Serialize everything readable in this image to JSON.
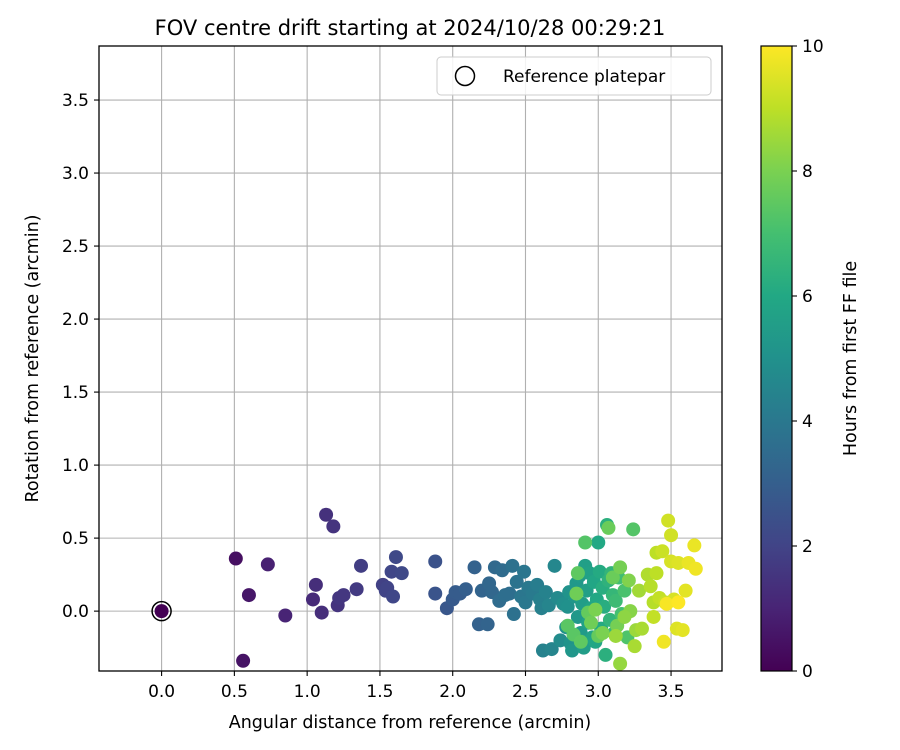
{
  "chart_data": {
    "type": "scatter",
    "title": "FOV centre drift starting at 2024/10/28 00:29:21",
    "xlabel": "Angular distance from reference (arcmin)",
    "ylabel": "Rotation from reference (arcmin)",
    "xlim": [
      -0.43,
      3.85
    ],
    "ylim": [
      -0.41,
      3.87
    ],
    "xticks": [
      0.0,
      0.5,
      1.0,
      1.5,
      2.0,
      2.5,
      3.0,
      3.5
    ],
    "xtick_labels": [
      "0.0",
      "0.5",
      "1.0",
      "1.5",
      "2.0",
      "2.5",
      "3.0",
      "3.5"
    ],
    "yticks": [
      0.0,
      0.5,
      1.0,
      1.5,
      2.0,
      2.5,
      3.0,
      3.5
    ],
    "ytick_labels": [
      "0.0",
      "0.5",
      "1.0",
      "1.5",
      "2.0",
      "2.5",
      "3.0",
      "3.5"
    ],
    "grid": true,
    "legend": {
      "position": "top-right",
      "label": "Reference platepar"
    },
    "reference_point": {
      "x": 0.0,
      "y": 0.0,
      "hours": 0.0
    },
    "colorbar": {
      "label": "Hours from first FF file",
      "colormap": "viridis",
      "min": 0,
      "max": 10,
      "ticks": [
        0,
        2,
        4,
        6,
        8,
        10
      ],
      "tick_labels": [
        "0",
        "2",
        "4",
        "6",
        "8",
        "10"
      ]
    },
    "points": [
      {
        "x": 0.0,
        "y": 0.0,
        "h": 0.0
      },
      {
        "x": 0.51,
        "y": 0.36,
        "h": 0.4
      },
      {
        "x": 0.56,
        "y": -0.34,
        "h": 0.5
      },
      {
        "x": 0.6,
        "y": 0.11,
        "h": 0.6
      },
      {
        "x": 0.73,
        "y": 0.32,
        "h": 0.9
      },
      {
        "x": 0.85,
        "y": -0.03,
        "h": 1.0
      },
      {
        "x": 1.04,
        "y": 0.08,
        "h": 1.2
      },
      {
        "x": 1.06,
        "y": 0.18,
        "h": 1.3
      },
      {
        "x": 1.1,
        "y": -0.01,
        "h": 1.3
      },
      {
        "x": 1.13,
        "y": 0.66,
        "h": 1.4
      },
      {
        "x": 1.18,
        "y": 0.58,
        "h": 1.5
      },
      {
        "x": 1.21,
        "y": 0.04,
        "h": 1.5
      },
      {
        "x": 1.22,
        "y": 0.09,
        "h": 1.6
      },
      {
        "x": 1.25,
        "y": 0.11,
        "h": 1.6
      },
      {
        "x": 1.34,
        "y": 0.15,
        "h": 1.7
      },
      {
        "x": 1.37,
        "y": 0.31,
        "h": 1.8
      },
      {
        "x": 1.52,
        "y": 0.18,
        "h": 1.9
      },
      {
        "x": 1.54,
        "y": 0.14,
        "h": 2.0
      },
      {
        "x": 1.55,
        "y": 0.16,
        "h": 2.0
      },
      {
        "x": 1.58,
        "y": 0.27,
        "h": 2.1
      },
      {
        "x": 1.59,
        "y": 0.1,
        "h": 2.1
      },
      {
        "x": 1.61,
        "y": 0.37,
        "h": 2.2
      },
      {
        "x": 1.65,
        "y": 0.26,
        "h": 2.2
      },
      {
        "x": 1.88,
        "y": 0.34,
        "h": 2.5
      },
      {
        "x": 1.88,
        "y": 0.12,
        "h": 2.6
      },
      {
        "x": 1.96,
        "y": 0.02,
        "h": 2.7
      },
      {
        "x": 2.0,
        "y": 0.08,
        "h": 2.8
      },
      {
        "x": 2.02,
        "y": 0.13,
        "h": 2.9
      },
      {
        "x": 2.05,
        "y": 0.12,
        "h": 2.9
      },
      {
        "x": 2.09,
        "y": 0.15,
        "h": 3.0
      },
      {
        "x": 2.15,
        "y": 0.3,
        "h": 3.1
      },
      {
        "x": 2.18,
        "y": -0.09,
        "h": 3.1
      },
      {
        "x": 2.2,
        "y": 0.14,
        "h": 3.2
      },
      {
        "x": 2.24,
        "y": -0.09,
        "h": 3.2
      },
      {
        "x": 2.25,
        "y": 0.19,
        "h": 3.3
      },
      {
        "x": 2.27,
        "y": 0.13,
        "h": 3.3
      },
      {
        "x": 2.29,
        "y": 0.3,
        "h": 3.4
      },
      {
        "x": 2.32,
        "y": 0.07,
        "h": 3.5
      },
      {
        "x": 2.34,
        "y": 0.28,
        "h": 3.5
      },
      {
        "x": 2.36,
        "y": 0.11,
        "h": 3.6
      },
      {
        "x": 2.39,
        "y": 0.12,
        "h": 3.6
      },
      {
        "x": 2.41,
        "y": 0.31,
        "h": 3.7
      },
      {
        "x": 2.42,
        "y": -0.02,
        "h": 3.7
      },
      {
        "x": 2.44,
        "y": 0.2,
        "h": 3.8
      },
      {
        "x": 2.47,
        "y": 0.1,
        "h": 3.9
      },
      {
        "x": 2.49,
        "y": 0.27,
        "h": 3.9
      },
      {
        "x": 2.5,
        "y": 0.06,
        "h": 4.0
      },
      {
        "x": 2.52,
        "y": 0.16,
        "h": 4.0
      },
      {
        "x": 2.55,
        "y": 0.12,
        "h": 4.1
      },
      {
        "x": 2.58,
        "y": 0.18,
        "h": 4.2
      },
      {
        "x": 2.6,
        "y": 0.08,
        "h": 4.3
      },
      {
        "x": 2.61,
        "y": 0.02,
        "h": 4.3
      },
      {
        "x": 2.62,
        "y": -0.27,
        "h": 4.4
      },
      {
        "x": 2.64,
        "y": 0.13,
        "h": 4.4
      },
      {
        "x": 2.66,
        "y": 0.04,
        "h": 4.5
      },
      {
        "x": 2.68,
        "y": -0.26,
        "h": 4.5
      },
      {
        "x": 2.7,
        "y": 0.31,
        "h": 4.6
      },
      {
        "x": 2.72,
        "y": 0.09,
        "h": 4.7
      },
      {
        "x": 2.74,
        "y": -0.2,
        "h": 4.8
      },
      {
        "x": 2.76,
        "y": 0.05,
        "h": 4.9
      },
      {
        "x": 2.78,
        "y": -0.11,
        "h": 5.0
      },
      {
        "x": 2.79,
        "y": 0.03,
        "h": 5.0
      },
      {
        "x": 2.8,
        "y": 0.13,
        "h": 5.1
      },
      {
        "x": 2.81,
        "y": -0.22,
        "h": 5.1
      },
      {
        "x": 2.82,
        "y": -0.27,
        "h": 5.2
      },
      {
        "x": 2.84,
        "y": 0.1,
        "h": 5.2
      },
      {
        "x": 2.85,
        "y": 0.19,
        "h": 5.3
      },
      {
        "x": 2.86,
        "y": -0.04,
        "h": 5.3
      },
      {
        "x": 2.87,
        "y": 0.24,
        "h": 5.4
      },
      {
        "x": 2.88,
        "y": -0.15,
        "h": 5.4
      },
      {
        "x": 2.89,
        "y": 0.05,
        "h": 5.5
      },
      {
        "x": 2.9,
        "y": -0.25,
        "h": 5.5
      },
      {
        "x": 2.91,
        "y": 0.31,
        "h": 5.6
      },
      {
        "x": 2.92,
        "y": 0.14,
        "h": 5.6
      },
      {
        "x": 2.93,
        "y": -0.08,
        "h": 5.7
      },
      {
        "x": 2.94,
        "y": 0.26,
        "h": 5.7
      },
      {
        "x": 2.95,
        "y": 0.02,
        "h": 5.8
      },
      {
        "x": 2.96,
        "y": -0.18,
        "h": 5.8
      },
      {
        "x": 2.97,
        "y": 0.2,
        "h": 5.9
      },
      {
        "x": 2.98,
        "y": -0.21,
        "h": 5.9
      },
      {
        "x": 2.99,
        "y": 0.08,
        "h": 6.0
      },
      {
        "x": 3.0,
        "y": 0.47,
        "h": 6.0
      },
      {
        "x": 3.01,
        "y": 0.27,
        "h": 6.1
      },
      {
        "x": 3.02,
        "y": -0.12,
        "h": 6.1
      },
      {
        "x": 3.03,
        "y": 0.16,
        "h": 6.2
      },
      {
        "x": 3.04,
        "y": 0.03,
        "h": 6.2
      },
      {
        "x": 3.05,
        "y": -0.3,
        "h": 6.3
      },
      {
        "x": 3.06,
        "y": 0.59,
        "h": 6.3
      },
      {
        "x": 3.07,
        "y": 0.21,
        "h": 6.4
      },
      {
        "x": 3.08,
        "y": -0.06,
        "h": 6.5
      },
      {
        "x": 3.09,
        "y": 0.26,
        "h": 6.5
      },
      {
        "x": 3.1,
        "y": 0.11,
        "h": 6.6
      },
      {
        "x": 3.11,
        "y": -0.15,
        "h": 6.7
      },
      {
        "x": 3.12,
        "y": 0.07,
        "h": 6.8
      },
      {
        "x": 3.14,
        "y": 0.23,
        "h": 6.9
      },
      {
        "x": 3.16,
        "y": -0.02,
        "h": 7.0
      },
      {
        "x": 3.18,
        "y": 0.14,
        "h": 7.1
      },
      {
        "x": 3.2,
        "y": -0.18,
        "h": 7.2
      },
      {
        "x": 3.24,
        "y": 0.56,
        "h": 7.3
      },
      {
        "x": 2.91,
        "y": 0.47,
        "h": 7.3
      },
      {
        "x": 2.79,
        "y": -0.1,
        "h": 7.4
      },
      {
        "x": 2.83,
        "y": -0.16,
        "h": 7.4
      },
      {
        "x": 2.86,
        "y": 0.26,
        "h": 7.5
      },
      {
        "x": 2.88,
        "y": -0.21,
        "h": 7.5
      },
      {
        "x": 2.93,
        "y": -0.01,
        "h": 7.6
      },
      {
        "x": 3.0,
        "y": -0.17,
        "h": 7.6
      },
      {
        "x": 3.07,
        "y": 0.57,
        "h": 7.7
      },
      {
        "x": 3.1,
        "y": 0.23,
        "h": 7.7
      },
      {
        "x": 2.85,
        "y": 0.12,
        "h": 7.8
      },
      {
        "x": 2.95,
        "y": -0.08,
        "h": 7.8
      },
      {
        "x": 3.13,
        "y": -0.1,
        "h": 7.9
      },
      {
        "x": 3.15,
        "y": 0.3,
        "h": 7.9
      },
      {
        "x": 2.98,
        "y": 0.01,
        "h": 8.0
      },
      {
        "x": 3.03,
        "y": -0.15,
        "h": 8.0
      },
      {
        "x": 3.21,
        "y": 0.21,
        "h": 8.1
      },
      {
        "x": 3.22,
        "y": 0.0,
        "h": 8.2
      },
      {
        "x": 3.18,
        "y": -0.04,
        "h": 8.3
      },
      {
        "x": 3.15,
        "y": -0.36,
        "h": 8.4
      },
      {
        "x": 3.12,
        "y": -0.17,
        "h": 8.5
      },
      {
        "x": 3.26,
        "y": -0.13,
        "h": 8.5
      },
      {
        "x": 3.28,
        "y": 0.14,
        "h": 8.6
      },
      {
        "x": 3.3,
        "y": -0.12,
        "h": 8.7
      },
      {
        "x": 3.25,
        "y": -0.24,
        "h": 8.7
      },
      {
        "x": 3.34,
        "y": 0.25,
        "h": 8.8
      },
      {
        "x": 3.36,
        "y": 0.17,
        "h": 8.9
      },
      {
        "x": 3.38,
        "y": 0.06,
        "h": 8.9
      },
      {
        "x": 3.4,
        "y": 0.4,
        "h": 9.0
      },
      {
        "x": 3.4,
        "y": 0.26,
        "h": 9.0
      },
      {
        "x": 3.42,
        "y": 0.09,
        "h": 9.1
      },
      {
        "x": 3.38,
        "y": -0.04,
        "h": 9.1
      },
      {
        "x": 3.44,
        "y": 0.41,
        "h": 9.2
      },
      {
        "x": 3.46,
        "y": 0.06,
        "h": 9.2
      },
      {
        "x": 3.48,
        "y": 0.62,
        "h": 9.3
      },
      {
        "x": 3.5,
        "y": 0.52,
        "h": 9.3
      },
      {
        "x": 3.5,
        "y": 0.34,
        "h": 9.4
      },
      {
        "x": 3.52,
        "y": 0.08,
        "h": 9.4
      },
      {
        "x": 3.54,
        "y": -0.12,
        "h": 9.5
      },
      {
        "x": 3.55,
        "y": 0.33,
        "h": 9.5
      },
      {
        "x": 3.58,
        "y": -0.13,
        "h": 9.6
      },
      {
        "x": 3.6,
        "y": 0.14,
        "h": 9.6
      },
      {
        "x": 3.62,
        "y": 0.33,
        "h": 9.7
      },
      {
        "x": 3.66,
        "y": 0.45,
        "h": 9.7
      },
      {
        "x": 3.67,
        "y": 0.29,
        "h": 9.8
      },
      {
        "x": 3.45,
        "y": -0.21,
        "h": 9.8
      },
      {
        "x": 3.47,
        "y": 0.05,
        "h": 9.9
      },
      {
        "x": 3.55,
        "y": 0.06,
        "h": 10.0
      }
    ]
  }
}
